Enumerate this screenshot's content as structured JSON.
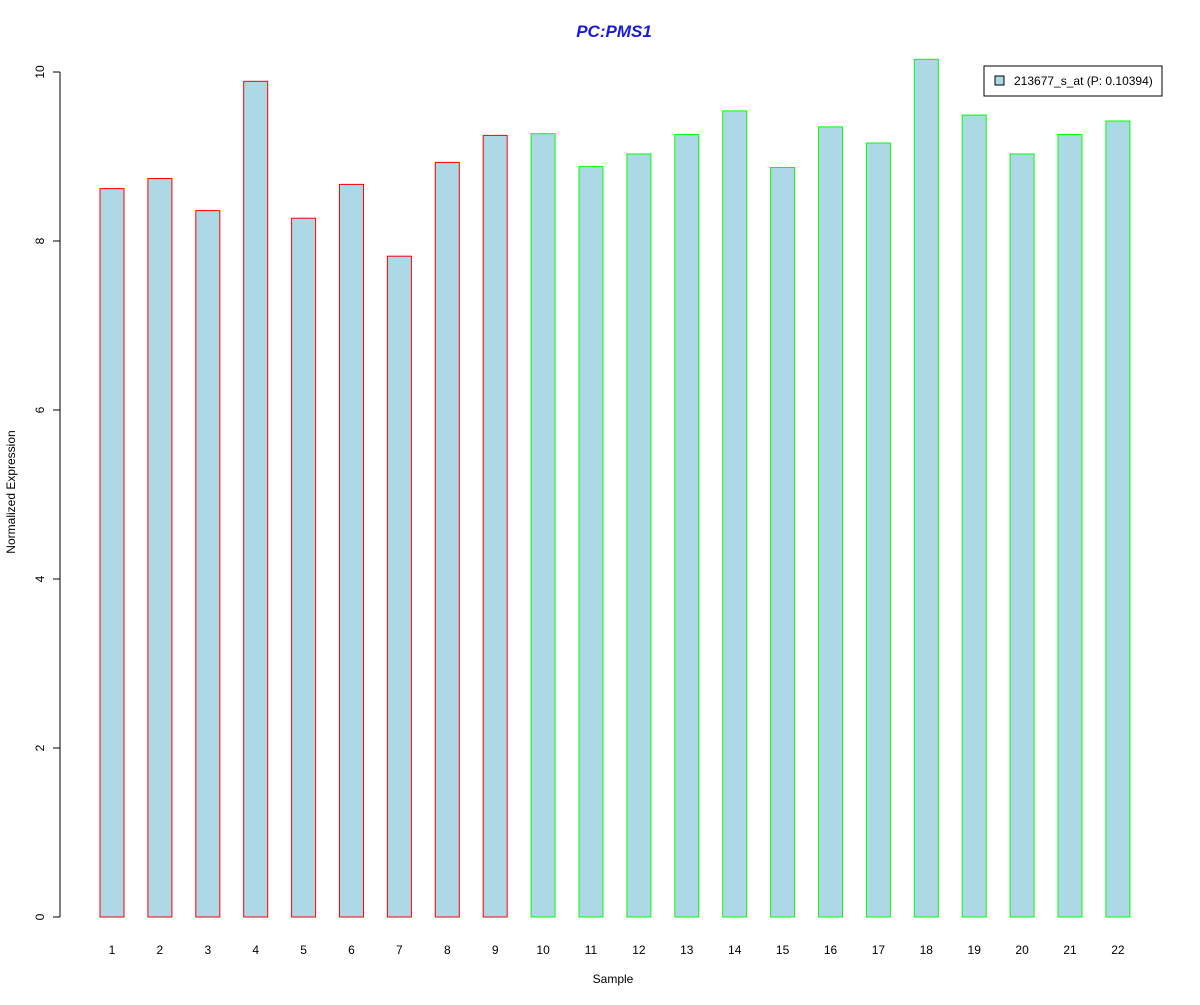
{
  "colors": {
    "title": "#1a1adf",
    "bar_fill": "#add8e6",
    "group1_border": "#ff0000",
    "group2_border": "#00ff00",
    "axis": "#000000"
  },
  "chart_data": {
    "type": "bar",
    "title": "PC:PMS1",
    "xlabel": "Sample",
    "ylabel": "Normalized Expression",
    "ylim": [
      0,
      10.3
    ],
    "yticks": [
      0,
      2,
      4,
      6,
      8,
      10
    ],
    "grid": false,
    "legend_position": "top-right",
    "categories": [
      "1",
      "2",
      "3",
      "4",
      "5",
      "6",
      "7",
      "8",
      "9",
      "10",
      "11",
      "12",
      "13",
      "14",
      "15",
      "16",
      "17",
      "18",
      "19",
      "20",
      "21",
      "22"
    ],
    "series": [
      {
        "name": "213677_s_at (P: 0.10394)",
        "values": [
          8.62,
          8.74,
          8.36,
          9.89,
          8.27,
          8.67,
          7.82,
          8.93,
          9.25,
          9.27,
          8.88,
          9.03,
          9.26,
          9.54,
          8.87,
          9.35,
          9.16,
          10.15,
          9.49,
          9.03,
          9.26,
          9.42
        ]
      }
    ],
    "groups": [
      "1",
      "1",
      "1",
      "1",
      "1",
      "1",
      "1",
      "1",
      "1",
      "2",
      "2",
      "2",
      "2",
      "2",
      "2",
      "2",
      "2",
      "2",
      "2",
      "2",
      "2",
      "2"
    ]
  }
}
